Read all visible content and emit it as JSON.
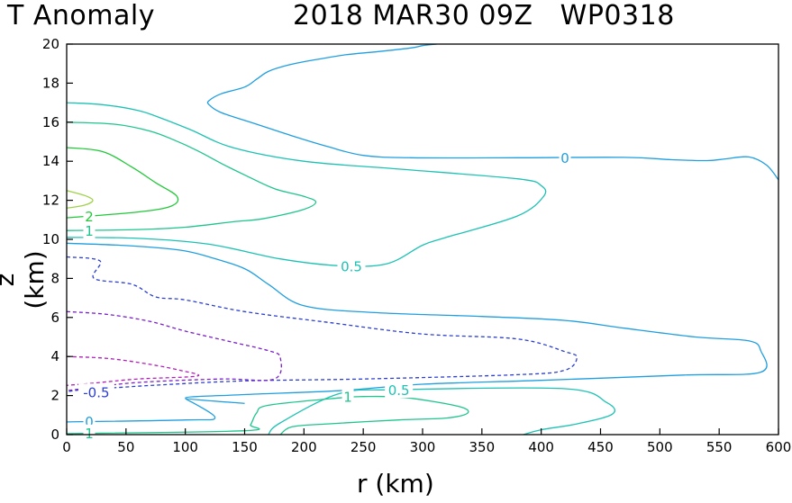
{
  "header": {
    "title_left": "T Anomaly",
    "title_right": "2018 MAR30 09Z   WP0318"
  },
  "chart_data": {
    "type": "contour",
    "xlabel": "r (km)",
    "ylabel": "z (km)",
    "xlim": [
      0,
      600
    ],
    "ylim": [
      0,
      20
    ],
    "x_ticks": [
      0,
      50,
      100,
      150,
      200,
      250,
      300,
      350,
      400,
      450,
      500,
      550,
      600
    ],
    "y_ticks": [
      0,
      2,
      4,
      6,
      8,
      10,
      12,
      14,
      16,
      18,
      20
    ],
    "grid": false,
    "colors": {
      "contour_0": "#1f9ee0",
      "contour_0_5": "#1dc2b4",
      "contour_1": "#1ec58c",
      "contour_2": "#22c83a",
      "contour_3": "#9fd24a",
      "contour_neg_0_5": "#2c3fd0",
      "contour_neg_1": "#7a20c8",
      "contour_neg_2": "#b020b8"
    },
    "contour_labels": [
      {
        "text": "0",
        "r": 420,
        "z": 14.2,
        "color": "#1f9ee0"
      },
      {
        "text": "0.5",
        "r": 240,
        "z": 8.65,
        "color": "#1dc2b4"
      },
      {
        "text": "2",
        "r": 19,
        "z": 11.2,
        "color": "#22c83a"
      },
      {
        "text": "1",
        "r": 19,
        "z": 10.45,
        "color": "#1ec58c"
      },
      {
        "text": "-0.5",
        "r": 25,
        "z": 2.2,
        "color": "#2c3fd0"
      },
      {
        "text": "1",
        "r": 237,
        "z": 1.95,
        "color": "#1ec58c"
      },
      {
        "text": "0.5",
        "r": 280,
        "z": 2.3,
        "color": "#1dc2b4"
      },
      {
        "text": "0",
        "r": 19,
        "z": 0.7,
        "color": "#1f9ee0"
      },
      {
        "text": "1",
        "r": 19,
        "z": 0.1,
        "color": "#1ec58c"
      }
    ],
    "contours": [
      {
        "level": "0",
        "color": "#1f9ee0",
        "dashed": false,
        "points": [
          [
            312,
            20
          ],
          [
            300,
            19.92
          ],
          [
            290,
            19.8
          ],
          [
            260,
            19.6
          ],
          [
            235,
            19.45
          ],
          [
            205,
            19.15
          ],
          [
            185,
            18.9
          ],
          [
            170,
            18.6
          ],
          [
            160,
            18.2
          ],
          [
            150,
            17.8
          ],
          [
            130,
            17.45
          ],
          [
            120,
            17.1
          ],
          [
            120,
            16.9
          ],
          [
            130,
            16.5
          ],
          [
            160,
            15.9
          ],
          [
            190,
            15.3
          ],
          [
            220,
            14.75
          ],
          [
            250,
            14.3
          ],
          [
            290,
            14.18
          ],
          [
            380,
            14.18
          ],
          [
            470,
            14.2
          ],
          [
            510,
            14.08
          ],
          [
            540,
            14.03
          ],
          [
            555,
            14.12
          ],
          [
            575,
            14.22
          ],
          [
            590,
            13.8
          ],
          [
            600,
            13.05
          ]
        ]
      },
      {
        "level": "0",
        "color": "#1f9ee0",
        "dashed": false,
        "points": [
          [
            0,
            9.8
          ],
          [
            50,
            9.68
          ],
          [
            95,
            9.45
          ],
          [
            120,
            9.1
          ],
          [
            150,
            8.5
          ],
          [
            170,
            7.7
          ],
          [
            200,
            6.6
          ],
          [
            260,
            6.25
          ],
          [
            350,
            6.05
          ],
          [
            420,
            5.85
          ],
          [
            470,
            5.45
          ],
          [
            530,
            5.0
          ],
          [
            575,
            4.8
          ],
          [
            585,
            4.3
          ],
          [
            585,
            3.2
          ],
          [
            520,
            3.05
          ],
          [
            400,
            2.78
          ],
          [
            300,
            2.58
          ],
          [
            230,
            2.25
          ],
          [
            150,
            2.05
          ],
          [
            100,
            1.88
          ],
          [
            150,
            1.6
          ]
        ]
      },
      {
        "level": "0",
        "color": "#1f9ee0",
        "dashed": false,
        "points": [
          [
            0,
            0.65
          ],
          [
            100,
            0.75
          ],
          [
            125,
            0.88
          ],
          [
            100,
            1.85
          ]
        ]
      },
      {
        "level": "0.5",
        "color": "#1dc2b4",
        "dashed": false,
        "points": [
          [
            0,
            17.0
          ],
          [
            30,
            16.9
          ],
          [
            60,
            16.6
          ],
          [
            80,
            16.2
          ],
          [
            105,
            15.6
          ],
          [
            140,
            14.7
          ],
          [
            200,
            14.0
          ],
          [
            280,
            13.6
          ],
          [
            380,
            13.1
          ],
          [
            400,
            12.75
          ],
          [
            402,
            12.2
          ],
          [
            380,
            11.2
          ],
          [
            320,
            10.1
          ],
          [
            300,
            9.7
          ],
          [
            270,
            8.75
          ],
          [
            230,
            8.65
          ],
          [
            180,
            9.0
          ],
          [
            120,
            9.75
          ],
          [
            60,
            10.05
          ],
          [
            0,
            10.1
          ]
        ]
      },
      {
        "level": "0.5",
        "color": "#1dc2b4",
        "dashed": false,
        "points": [
          [
            170,
            0
          ],
          [
            180,
            0.6
          ],
          [
            230,
            2.1
          ],
          [
            280,
            2.3
          ],
          [
            420,
            2.35
          ],
          [
            455,
            1.65
          ],
          [
            460,
            1.05
          ],
          [
            430,
            0.55
          ],
          [
            400,
            0.25
          ],
          [
            385,
            0
          ]
        ]
      },
      {
        "level": "1",
        "color": "#1ec58c",
        "dashed": false,
        "points": [
          [
            0,
            16.0
          ],
          [
            40,
            15.9
          ],
          [
            70,
            15.55
          ],
          [
            90,
            15.1
          ],
          [
            110,
            14.55
          ],
          [
            130,
            13.9
          ],
          [
            150,
            13.3
          ],
          [
            175,
            12.6
          ],
          [
            200,
            12.2
          ],
          [
            210,
            11.9
          ],
          [
            198,
            11.5
          ],
          [
            165,
            11.05
          ],
          [
            140,
            10.9
          ],
          [
            100,
            10.62
          ],
          [
            60,
            10.5
          ],
          [
            0,
            10.45
          ]
        ]
      },
      {
        "level": "1",
        "color": "#1ec58c",
        "dashed": false,
        "points": [
          [
            0,
            0.05
          ],
          [
            150,
            0.2
          ],
          [
            155,
            0.5
          ],
          [
            160,
            1.1
          ],
          [
            170,
            1.5
          ],
          [
            230,
            1.88
          ],
          [
            250,
            1.95
          ],
          [
            285,
            1.9
          ],
          [
            330,
            1.45
          ],
          [
            338,
            1.1
          ],
          [
            320,
            0.85
          ],
          [
            280,
            0.75
          ],
          [
            220,
            0.55
          ],
          [
            190,
            0.4
          ],
          [
            180,
            0
          ]
        ]
      },
      {
        "level": "2",
        "color": "#22c83a",
        "dashed": false,
        "points": [
          [
            0,
            14.7
          ],
          [
            30,
            14.5
          ],
          [
            55,
            13.7
          ],
          [
            75,
            12.9
          ],
          [
            93,
            12.2
          ],
          [
            88,
            11.7
          ],
          [
            60,
            11.4
          ],
          [
            0,
            11.1
          ]
        ]
      },
      {
        "level": "3",
        "color": "#9fd24a",
        "dashed": false,
        "points": [
          [
            0,
            12.5
          ],
          [
            15,
            12.25
          ],
          [
            22,
            12.0
          ],
          [
            15,
            11.75
          ],
          [
            0,
            11.6
          ]
        ]
      },
      {
        "level": "-0.5",
        "color": "#2c3fd0",
        "dashed": true,
        "points": [
          [
            0,
            9.1
          ],
          [
            28,
            8.9
          ],
          [
            23,
            8.0
          ],
          [
            55,
            7.7
          ],
          [
            75,
            7.05
          ],
          [
            100,
            6.9
          ],
          [
            150,
            6.3
          ],
          [
            220,
            5.75
          ],
          [
            300,
            5.15
          ],
          [
            380,
            4.9
          ],
          [
            420,
            4.25
          ],
          [
            430,
            3.95
          ],
          [
            420,
            3.3
          ],
          [
            380,
            3.07
          ],
          [
            250,
            2.85
          ],
          [
            150,
            2.75
          ],
          [
            80,
            2.55
          ],
          [
            40,
            2.4
          ],
          [
            20,
            2.35
          ],
          [
            0,
            2.2
          ]
        ]
      },
      {
        "level": "-1",
        "color": "#7a20c8",
        "dashed": true,
        "points": [
          [
            0,
            6.3
          ],
          [
            35,
            6.15
          ],
          [
            70,
            5.8
          ],
          [
            100,
            5.3
          ],
          [
            135,
            4.8
          ],
          [
            170,
            4.3
          ],
          [
            180,
            3.95
          ],
          [
            175,
            2.85
          ],
          [
            130,
            2.85
          ],
          [
            60,
            2.67
          ],
          [
            20,
            2.4
          ],
          [
            0,
            2.25
          ]
        ]
      },
      {
        "level": "-2",
        "color": "#b020b8",
        "dashed": true,
        "points": [
          [
            0,
            4.0
          ],
          [
            35,
            3.9
          ],
          [
            70,
            3.6
          ],
          [
            95,
            3.3
          ],
          [
            110,
            3.0
          ],
          [
            60,
            2.85
          ],
          [
            25,
            2.65
          ],
          [
            0,
            2.52
          ]
        ]
      }
    ]
  }
}
